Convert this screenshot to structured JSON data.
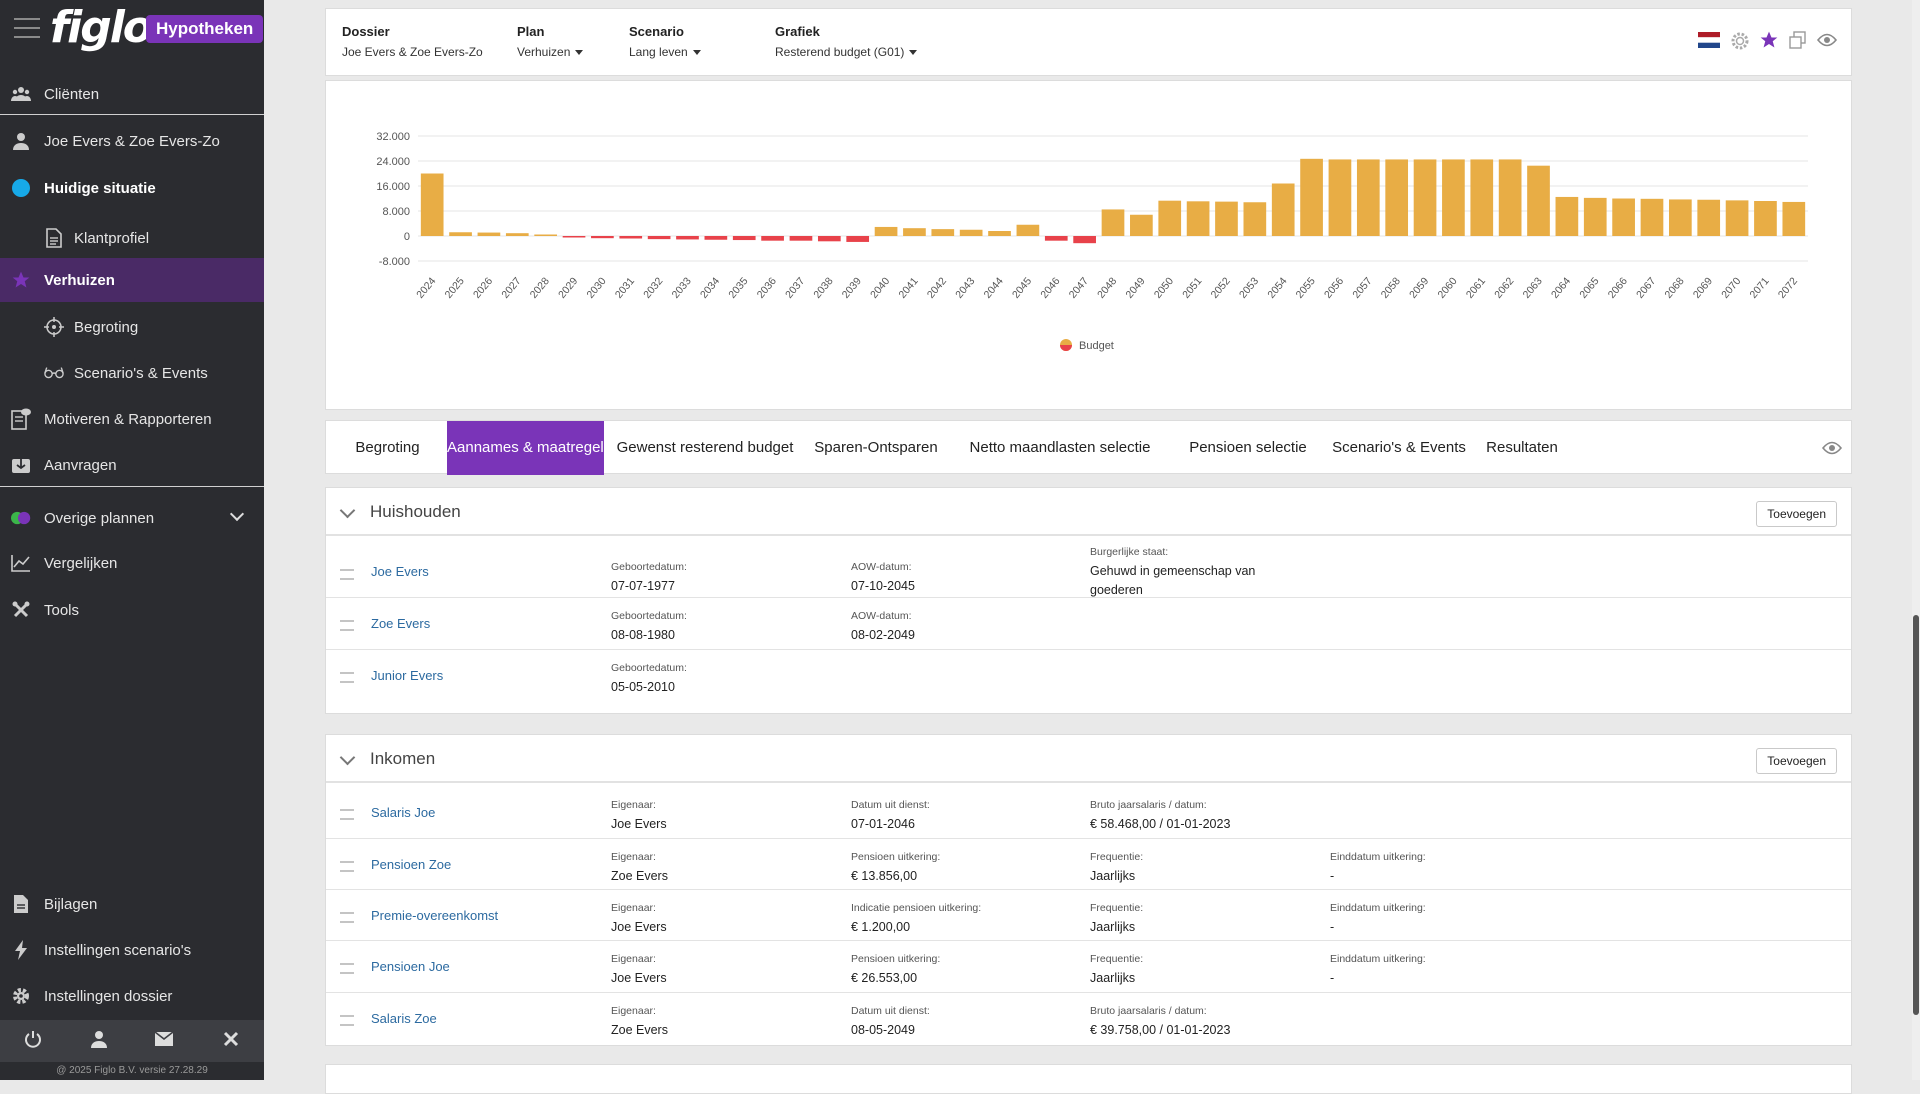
{
  "brand": {
    "logo": "figlo",
    "badge": "Hypotheken"
  },
  "sidebar": {
    "items": [
      {
        "label": "Cliënten"
      },
      {
        "label": "Joe Evers & Zoe Evers-Zo"
      },
      {
        "label": "Huidige situatie"
      },
      {
        "label": "Klantprofiel"
      },
      {
        "label": "Verhuizen"
      },
      {
        "label": "Begroting"
      },
      {
        "label": "Scenario's & Events"
      },
      {
        "label": "Motiveren & Rapporteren"
      },
      {
        "label": "Aanvragen"
      },
      {
        "label": "Overige plannen"
      },
      {
        "label": "Vergelijken"
      },
      {
        "label": "Tools"
      },
      {
        "label": "Bijlagen"
      },
      {
        "label": "Instellingen scenario's"
      },
      {
        "label": "Instellingen dossier"
      }
    ],
    "copyright": "@ 2025 Figlo B.V. versie 27.28.29"
  },
  "topbar": {
    "dossier_label": "Dossier",
    "dossier_value": "Joe Evers & Zoe Evers-Zo",
    "plan_label": "Plan",
    "plan_value": "Verhuizen",
    "scenario_label": "Scenario",
    "scenario_value": "Lang leven",
    "grafiek_label": "Grafiek",
    "grafiek_value": "Resterend budget (G01)"
  },
  "chart_data": {
    "type": "bar",
    "categories": [
      "2024",
      "2025",
      "2026",
      "2027",
      "2028",
      "2029",
      "2030",
      "2031",
      "2032",
      "2033",
      "2034",
      "2035",
      "2036",
      "2037",
      "2038",
      "2039",
      "2040",
      "2041",
      "2042",
      "2043",
      "2044",
      "2045",
      "2046",
      "2047",
      "2048",
      "2049",
      "2050",
      "2051",
      "2052",
      "2053",
      "2054",
      "2055",
      "2056",
      "2057",
      "2058",
      "2059",
      "2060",
      "2061",
      "2062",
      "2063",
      "2064",
      "2065",
      "2066",
      "2067",
      "2068",
      "2069",
      "2070",
      "2071",
      "2072"
    ],
    "series": [
      {
        "name": "Budget",
        "values": [
          20000,
          1200,
          1100,
          900,
          400,
          -400,
          -700,
          -800,
          -1000,
          -1100,
          -1200,
          -1300,
          -1500,
          -1500,
          -1700,
          -1900,
          2900,
          2500,
          2200,
          2000,
          1600,
          3600,
          -1500,
          -2300,
          8500,
          6800,
          11300,
          11100,
          11000,
          10800,
          16800,
          24700,
          24500,
          24500,
          24500,
          24500,
          24500,
          24500,
          24500,
          22500,
          12500,
          12200,
          12000,
          11900,
          11700,
          11600,
          11400,
          11200,
          10900
        ]
      }
    ],
    "yticks": [
      "32.000",
      "24.000",
      "16.000",
      "8.000",
      "0",
      "-8.000"
    ],
    "ylim": [
      -8000,
      32000
    ],
    "colors": {
      "positive": "#e8ad45",
      "negative": "#e8424a"
    },
    "legend": "bottom-center",
    "grid": true
  },
  "tabs": [
    {
      "label": "Begroting"
    },
    {
      "label": "Aannames & maatregelen"
    },
    {
      "label": "Gewenst resterend budget"
    },
    {
      "label": "Sparen-Ontsparen"
    },
    {
      "label": "Netto maandlasten selectie"
    },
    {
      "label": "Pensioen selectie"
    },
    {
      "label": "Scenario's & Events"
    },
    {
      "label": "Resultaten"
    }
  ],
  "household": {
    "title": "Huishouden",
    "add_label": "Toevoegen",
    "rows": [
      {
        "name": "Joe Evers",
        "c1_label": "Geboortedatum:",
        "c1_value": "07-07-1977",
        "c2_label": "AOW-datum:",
        "c2_value": "07-10-2045",
        "c3_label": "Burgerlijke staat:",
        "c3_value": "Gehuwd in gemeenschap van goederen"
      },
      {
        "name": "Zoe Evers",
        "c1_label": "Geboortedatum:",
        "c1_value": "08-08-1980",
        "c2_label": "AOW-datum:",
        "c2_value": "08-02-2049"
      },
      {
        "name": "Junior Evers",
        "c1_label": "Geboortedatum:",
        "c1_value": "05-05-2010"
      }
    ]
  },
  "income": {
    "title": "Inkomen",
    "add_label": "Toevoegen",
    "rows": [
      {
        "name": "Salaris Joe",
        "c1_label": "Eigenaar:",
        "c1_value": "Joe Evers",
        "c2_label": "Datum uit dienst:",
        "c2_value": "07-01-2046",
        "c3_label": "Bruto jaarsalaris / datum:",
        "c3_value": "€ 58.468,00 / 01-01-2023"
      },
      {
        "name": "Pensioen Zoe",
        "c1_label": "Eigenaar:",
        "c1_value": "Zoe Evers",
        "c2_label": "Pensioen uitkering:",
        "c2_value": "€ 13.856,00",
        "c3_label": "Frequentie:",
        "c3_value": "Jaarlijks",
        "c4_label": "Einddatum uitkering:",
        "c4_value": "-"
      },
      {
        "name": "Premie-overeenkomst",
        "c1_label": "Eigenaar:",
        "c1_value": "Joe Evers",
        "c2_label": "Indicatie pensioen uitkering:",
        "c2_value": "€ 1.200,00",
        "c3_label": "Frequentie:",
        "c3_value": "Jaarlijks",
        "c4_label": "Einddatum uitkering:",
        "c4_value": "-"
      },
      {
        "name": "Pensioen Joe",
        "c1_label": "Eigenaar:",
        "c1_value": "Joe Evers",
        "c2_label": "Pensioen uitkering:",
        "c2_value": "€ 26.553,00",
        "c3_label": "Frequentie:",
        "c3_value": "Jaarlijks",
        "c4_label": "Einddatum uitkering:",
        "c4_value": "-"
      },
      {
        "name": "Salaris Zoe",
        "c1_label": "Eigenaar:",
        "c1_value": "Zoe Evers",
        "c2_label": "Datum uit dienst:",
        "c2_value": "08-05-2049",
        "c3_label": "Bruto jaarsalaris / datum:",
        "c3_value": "€ 39.758,00 / 01-01-2023"
      }
    ]
  }
}
